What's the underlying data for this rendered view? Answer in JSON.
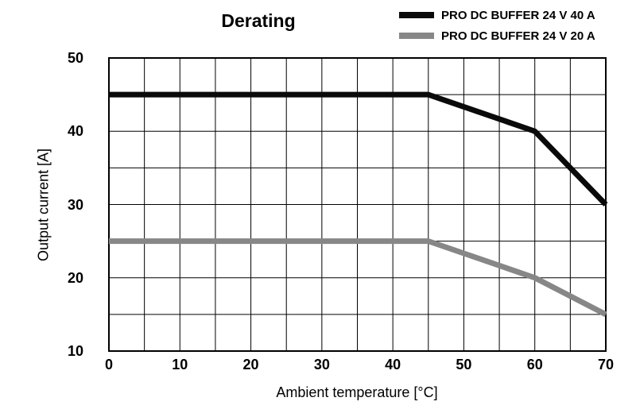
{
  "chart_data": {
    "type": "line",
    "title": "Derating",
    "xlabel": "Ambient temperature [°C]",
    "ylabel": "Output current [A]",
    "xlim": [
      0,
      70
    ],
    "ylim": [
      10,
      50
    ],
    "xticks": [
      0,
      10,
      20,
      30,
      40,
      50,
      60,
      70
    ],
    "yticks": [
      10,
      20,
      30,
      40,
      50
    ],
    "grid": true,
    "grid_step": 5,
    "grid_color": "#000000",
    "border_color": "#000000",
    "legend_position": "top-right",
    "series": [
      {
        "name": "PRO DC BUFFER 24 V 40 A",
        "color": "#0a0a0a",
        "points": [
          [
            0,
            45
          ],
          [
            45,
            45
          ],
          [
            60,
            40
          ],
          [
            70,
            30
          ]
        ]
      },
      {
        "name": "PRO DC BUFFER 24 V 20 A",
        "color": "#878787",
        "points": [
          [
            0,
            25
          ],
          [
            45,
            25
          ],
          [
            60,
            20
          ],
          [
            70,
            15
          ]
        ]
      }
    ]
  }
}
